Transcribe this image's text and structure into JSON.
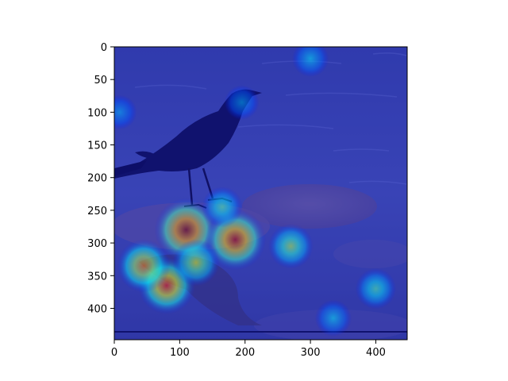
{
  "figure": {
    "description_type": "heatmap-overlay-on-photo",
    "colormap": "jet",
    "background_color": "#ffffff"
  },
  "chart_data": {
    "type": "heatmap",
    "title": "",
    "xlabel": "",
    "ylabel": "",
    "xlim": [
      0,
      448
    ],
    "ylim": [
      448,
      0
    ],
    "x_ticks": [
      0,
      100,
      200,
      300,
      400
    ],
    "y_ticks": [
      0,
      50,
      100,
      150,
      200,
      250,
      300,
      350,
      400
    ],
    "x_tick_labels": [
      "0",
      "100",
      "200",
      "300",
      "400"
    ],
    "y_tick_labels": [
      "0",
      "50",
      "100",
      "150",
      "200",
      "250",
      "300",
      "350",
      "400"
    ],
    "grid": false,
    "hotspots": [
      {
        "x": 110,
        "y": 280,
        "intensity": 1.0
      },
      {
        "x": 185,
        "y": 295,
        "intensity": 0.95
      },
      {
        "x": 80,
        "y": 365,
        "intensity": 0.85
      },
      {
        "x": 45,
        "y": 335,
        "intensity": 0.75
      },
      {
        "x": 125,
        "y": 330,
        "intensity": 0.6
      },
      {
        "x": 270,
        "y": 305,
        "intensity": 0.55
      },
      {
        "x": 400,
        "y": 370,
        "intensity": 0.45
      },
      {
        "x": 300,
        "y": 18,
        "intensity": 0.35
      },
      {
        "x": 335,
        "y": 415,
        "intensity": 0.35
      },
      {
        "x": 195,
        "y": 85,
        "intensity": 0.3
      },
      {
        "x": 8,
        "y": 100,
        "intensity": 0.3
      },
      {
        "x": 165,
        "y": 245,
        "intensity": 0.45
      }
    ]
  }
}
